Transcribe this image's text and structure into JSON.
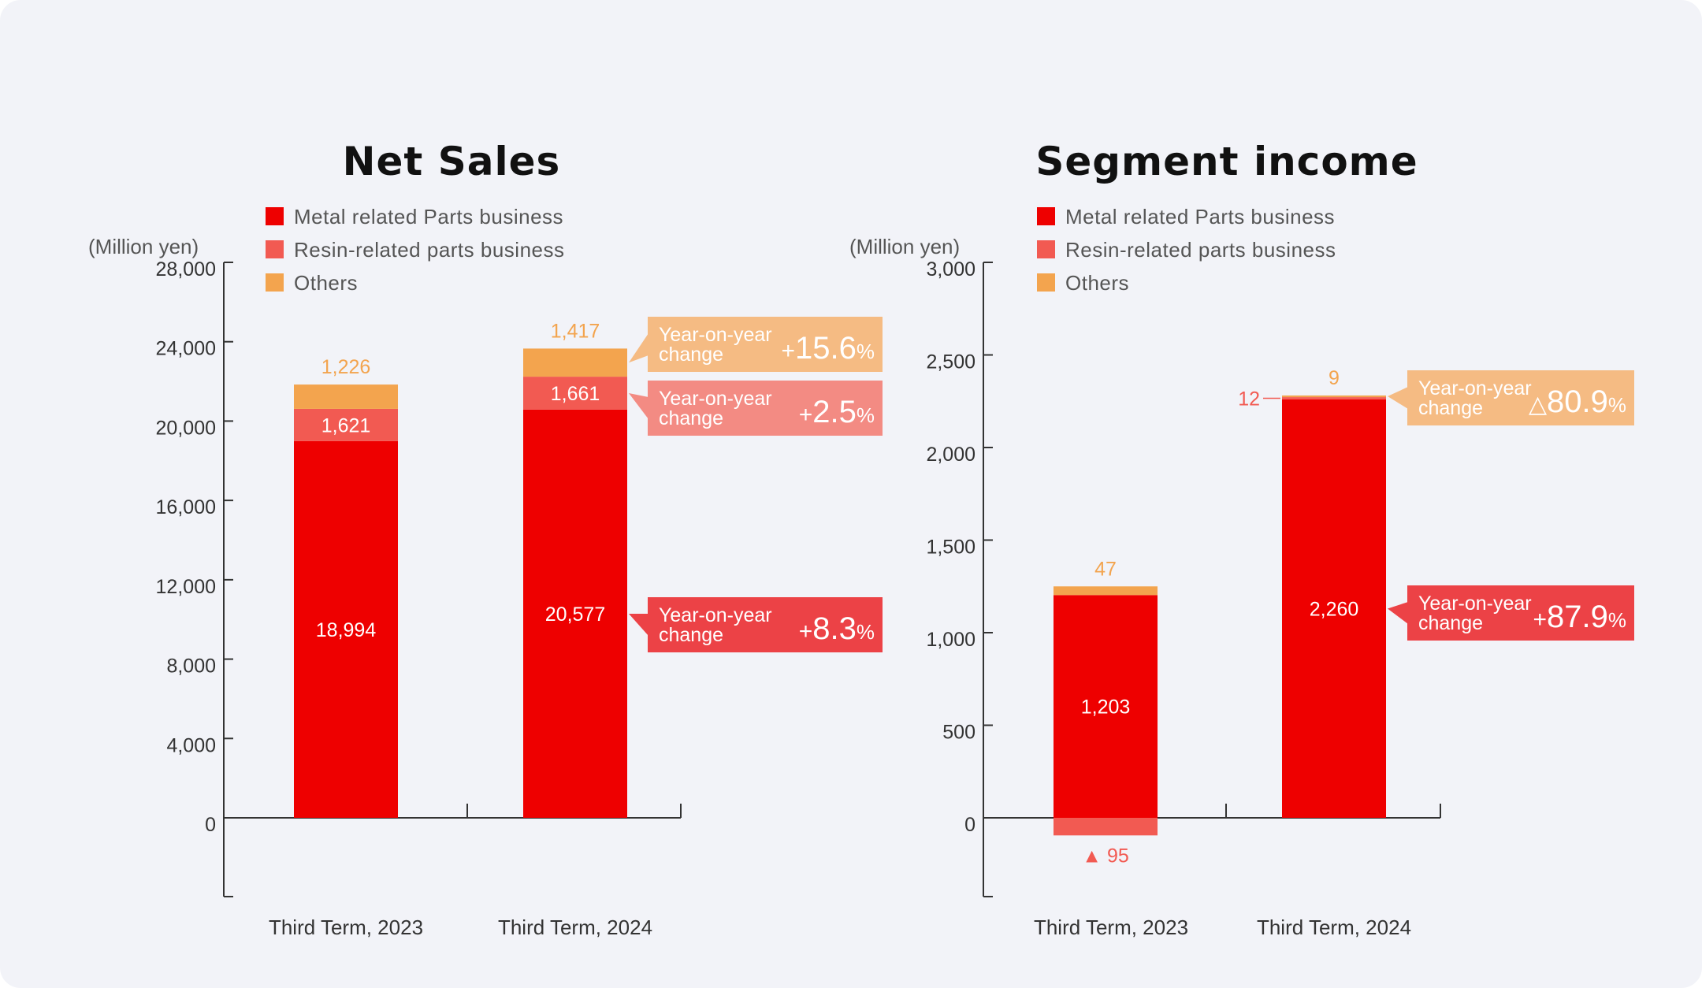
{
  "colors": {
    "metal": "#ee0000",
    "resin": "#f25a52",
    "others": "#f3a44e",
    "others_box": "#f5bb83",
    "resin_box": "#f38b83",
    "metal_box": "#ec4246",
    "axis": "#333333",
    "tick_text": "#333333"
  },
  "chart_data": [
    {
      "type": "bar",
      "stacked": true,
      "title": "Net Sales",
      "ylabel": "(Million yen)",
      "ylim": [
        -4000,
        28000
      ],
      "yticks": [
        0,
        4000,
        8000,
        12000,
        16000,
        20000,
        24000,
        28000
      ],
      "ytick_labels": [
        "0",
        "4,000",
        "8,000",
        "12,000",
        "16,000",
        "20,000",
        "24,000",
        "28,000"
      ],
      "categories": [
        "Third Term, 2023",
        "Third Term, 2024"
      ],
      "legend": [
        "Metal related Parts business",
        "Resin-related parts business",
        "Others"
      ],
      "series": [
        {
          "name": "Metal related Parts business",
          "color_key": "metal",
          "values": [
            18994,
            20577
          ],
          "labels": [
            "18,994",
            "20,577"
          ]
        },
        {
          "name": "Resin-related parts business",
          "color_key": "resin",
          "values": [
            1621,
            1661
          ],
          "labels": [
            "1,621",
            "1,661"
          ]
        },
        {
          "name": "Others",
          "color_key": "others",
          "values": [
            1226,
            1417
          ],
          "labels": [
            "1,226",
            "1,417"
          ]
        }
      ],
      "yoy": [
        {
          "series": "Others",
          "label_line1": "Year-on-year",
          "label_line2": "change",
          "sign": "+",
          "value": "15.6",
          "unit": "%",
          "box_key": "others_box"
        },
        {
          "series": "Resin-related parts business",
          "label_line1": "Year-on-year",
          "label_line2": "change",
          "sign": "+",
          "value": "2.5",
          "unit": "%",
          "box_key": "resin_box"
        },
        {
          "series": "Metal related Parts business",
          "label_line1": "Year-on-year",
          "label_line2": "change",
          "sign": "+",
          "value": "8.3",
          "unit": "%",
          "box_key": "metal_box"
        }
      ]
    },
    {
      "type": "bar",
      "stacked": true,
      "title": "Segment income",
      "ylabel": "(Million yen)",
      "ylim": [
        -430,
        3000
      ],
      "yticks": [
        0,
        500,
        1000,
        1500,
        2000,
        2500,
        3000
      ],
      "ytick_labels": [
        "0",
        "500",
        "1,000",
        "1,500",
        "2,000",
        "2,500",
        "3,000"
      ],
      "categories": [
        "Third Term, 2023",
        "Third Term, 2024"
      ],
      "legend": [
        "Metal related Parts business",
        "Resin-related parts business",
        "Others"
      ],
      "series": [
        {
          "name": "Metal related Parts business",
          "color_key": "metal",
          "values": [
            1203,
            2260
          ],
          "labels": [
            "1,203",
            "2,260"
          ]
        },
        {
          "name": "Resin-related parts business",
          "color_key": "resin",
          "values": [
            -95,
            12
          ],
          "labels": [
            "▲ 95",
            "12"
          ]
        },
        {
          "name": "Others",
          "color_key": "others",
          "values": [
            47,
            9
          ],
          "labels": [
            "47",
            "9"
          ]
        }
      ],
      "yoy": [
        {
          "series": "Others",
          "label_line1": "Year-on-year",
          "label_line2": "change",
          "sign": "△",
          "value": "80.9",
          "unit": "%",
          "box_key": "others_box"
        },
        {
          "series": "Metal related Parts business",
          "label_line1": "Year-on-year",
          "label_line2": "change",
          "sign": "+",
          "value": "87.9",
          "unit": "%",
          "box_key": "metal_box"
        }
      ]
    }
  ]
}
